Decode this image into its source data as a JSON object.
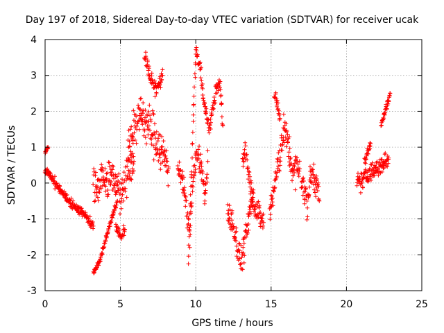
{
  "chart_data": {
    "type": "scatter",
    "title": "Day 197 of 2018, Sidereal Day-to-day VTEC variation (SDTVAR) for receiver ucak",
    "xlabel": "GPS time / hours",
    "ylabel": "SDTVAR / TECUs",
    "xlim": [
      0,
      25
    ],
    "ylim": [
      -3,
      4
    ],
    "xticks": [
      0,
      5,
      10,
      15,
      20,
      25
    ],
    "yticks": [
      -3,
      -2,
      -1,
      0,
      1,
      2,
      3,
      4
    ],
    "grid": true,
    "marker": "+",
    "color": "#ff0000",
    "series": [
      {
        "name": "SDTVAR",
        "segments": [
          {
            "x": [
              0.0,
              0.2,
              0.4,
              0.6,
              0.8,
              1.0,
              1.2,
              1.4,
              1.6,
              1.8,
              2.0,
              2.2,
              2.4,
              2.6,
              2.8,
              3.0,
              3.2
            ],
            "y": [
              0.35,
              0.3,
              0.2,
              0.05,
              -0.1,
              -0.2,
              -0.3,
              -0.4,
              -0.5,
              -0.6,
              -0.65,
              -0.75,
              -0.8,
              -0.85,
              -1.0,
              -1.1,
              -1.2
            ],
            "jitter": 0.12
          },
          {
            "x": [
              0.0,
              0.1,
              0.2
            ],
            "y": [
              0.85,
              0.92,
              1.0
            ],
            "jitter": 0.05
          },
          {
            "x": [
              3.2,
              3.6,
              4.0,
              4.4,
              4.8
            ],
            "y": [
              -2.5,
              -2.2,
              -1.6,
              -1.0,
              -0.5
            ],
            "jitter": 0.08
          },
          {
            "x": [
              3.2,
              3.5,
              3.8,
              4.1,
              4.4,
              4.7,
              5.0,
              5.3,
              5.6,
              5.9
            ],
            "y": [
              0.1,
              -0.1,
              0.2,
              0.0,
              0.3,
              0.0,
              -0.3,
              0.1,
              0.4,
              0.6
            ],
            "jitter": 0.5
          },
          {
            "x": [
              4.7,
              4.9,
              5.1,
              5.3
            ],
            "y": [
              -1.2,
              -1.4,
              -1.5,
              -1.3
            ],
            "jitter": 0.15
          },
          {
            "x": [
              5.5,
              5.8,
              6.1,
              6.4,
              6.7,
              7.0,
              7.3,
              7.6,
              7.9,
              8.2
            ],
            "y": [
              1.0,
              1.4,
              1.8,
              1.9,
              1.7,
              1.5,
              1.3,
              1.0,
              0.7,
              0.4
            ],
            "jitter": 0.6
          },
          {
            "x": [
              6.6,
              6.8,
              7.0,
              7.4,
              7.8
            ],
            "y": [
              3.6,
              3.3,
              2.9,
              2.6,
              3.0
            ],
            "jitter": 0.2
          },
          {
            "x": [
              8.8,
              9.0,
              9.2,
              9.4,
              9.6,
              9.8,
              10.0,
              10.2,
              10.4,
              10.6,
              10.8
            ],
            "y": [
              0.5,
              0.3,
              -0.2,
              -0.8,
              -1.4,
              0.0,
              0.6,
              0.8,
              0.4,
              -0.5,
              0.6
            ],
            "jitter": 0.35
          },
          {
            "x": [
              9.5,
              10.0,
              10.3,
              10.6,
              10.9,
              11.3,
              11.6,
              11.8
            ],
            "y": [
              -2.2,
              3.7,
              3.2,
              2.1,
              1.5,
              2.5,
              2.8,
              1.6
            ],
            "jitter": 0.2
          },
          {
            "x": [
              12.1,
              12.4,
              12.6,
              12.8,
              13.0,
              13.2,
              13.4,
              13.6,
              13.8
            ],
            "y": [
              -0.8,
              -1.1,
              -1.4,
              -1.8,
              -2.2,
              -1.8,
              -1.3,
              -0.8,
              -0.4
            ],
            "jitter": 0.4
          },
          {
            "x": [
              13.1,
              13.3,
              13.5,
              13.7,
              13.9,
              14.2,
              14.5
            ],
            "y": [
              0.6,
              1.0,
              0.3,
              -0.2,
              -0.6,
              -0.9,
              -1.1
            ],
            "jitter": 0.35
          },
          {
            "x": [
              14.9,
              15.1,
              15.3,
              15.5,
              15.7,
              15.9,
              16.1,
              16.3,
              16.5,
              16.7,
              16.9
            ],
            "y": [
              -0.8,
              -0.4,
              0.1,
              0.5,
              1.2,
              1.5,
              1.1,
              0.6,
              0.2,
              0.5,
              0.4
            ],
            "jitter": 0.45
          },
          {
            "x": [
              15.2,
              15.4,
              15.6
            ],
            "y": [
              2.5,
              2.2,
              1.8
            ],
            "jitter": 0.2
          },
          {
            "x": [
              17.0,
              17.2,
              17.4,
              17.6,
              17.8,
              18.0,
              18.2
            ],
            "y": [
              0.2,
              -0.3,
              -0.6,
              0.1,
              0.3,
              0.0,
              -0.5
            ],
            "jitter": 0.4
          },
          {
            "x": [
              20.7,
              21.0,
              21.3,
              21.6,
              21.9,
              22.2,
              22.5,
              22.8
            ],
            "y": [
              0.0,
              0.05,
              0.2,
              0.3,
              0.35,
              0.45,
              0.55,
              0.7
            ],
            "jitter": 0.25
          },
          {
            "x": [
              21.2,
              21.4,
              21.6
            ],
            "y": [
              0.6,
              0.9,
              1.1
            ],
            "jitter": 0.15
          },
          {
            "x": [
              22.3,
              22.5,
              22.7,
              22.9
            ],
            "y": [
              1.6,
              1.9,
              2.2,
              2.5
            ],
            "jitter": 0.1
          }
        ]
      }
    ]
  }
}
